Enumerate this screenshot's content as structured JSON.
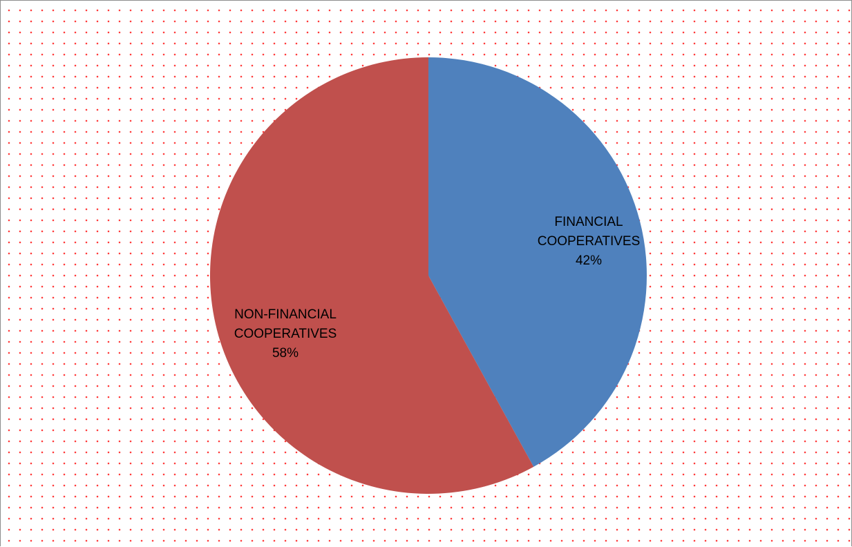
{
  "chart_data": {
    "type": "pie",
    "title": "",
    "slices": [
      {
        "label_lines": [
          "FINANCIAL",
          "COOPERATIVES"
        ],
        "value": 42,
        "value_label": "42%",
        "color": "#4f81bd"
      },
      {
        "label_lines": [
          "NON-FINANCIAL",
          "COOPERATIVES"
        ],
        "value": 58,
        "value_label": "58%",
        "color": "#c0504d"
      }
    ],
    "legend": "none",
    "labels_inside": true,
    "background_pattern": "red-dot-grid",
    "background_pattern_color": "#ff3b3b"
  }
}
